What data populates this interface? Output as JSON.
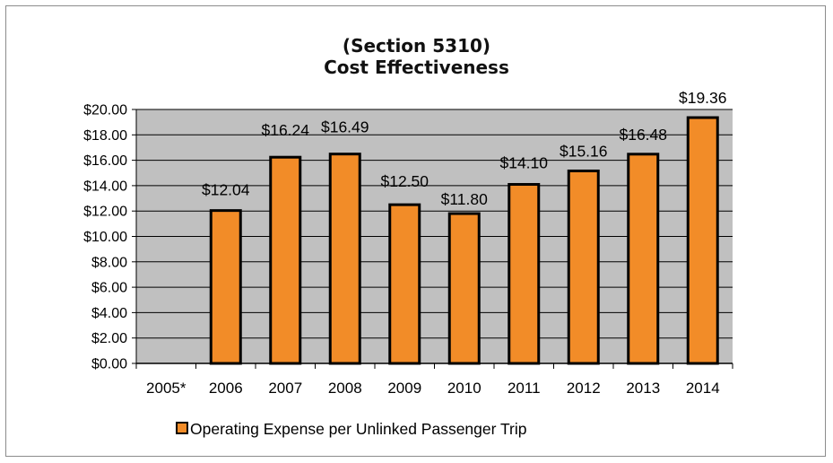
{
  "chart_data": {
    "type": "bar",
    "title": "(Section 5310)",
    "subtitle": "Cost Effectiveness",
    "categories": [
      "2005*",
      "2006",
      "2007",
      "2008",
      "2009",
      "2010",
      "2011",
      "2012",
      "2013",
      "2014"
    ],
    "series": [
      {
        "name": "Operating Expense per Unlinked Passenger Trip",
        "values": [
          null,
          12.04,
          16.24,
          16.49,
          12.5,
          11.8,
          14.1,
          15.16,
          16.48,
          19.36
        ],
        "labels": [
          "",
          "$12.04",
          "$16.24",
          "$16.49",
          "$12.50",
          "$11.80",
          "$14.10",
          "$15.16",
          "$16.48",
          "$19.36"
        ]
      }
    ],
    "y_ticks": [
      "$0.00",
      "$2.00",
      "$4.00",
      "$6.00",
      "$8.00",
      "$10.00",
      "$12.00",
      "$14.00",
      "$16.00",
      "$18.00",
      "$20.00"
    ],
    "ylim": [
      0,
      20
    ],
    "grid": true,
    "legend_position": "bottom",
    "colors": {
      "bar": "#f28c28",
      "bar_border": "#000000",
      "plot_bg": "#c0c0c0",
      "gridline": "#000000"
    }
  }
}
